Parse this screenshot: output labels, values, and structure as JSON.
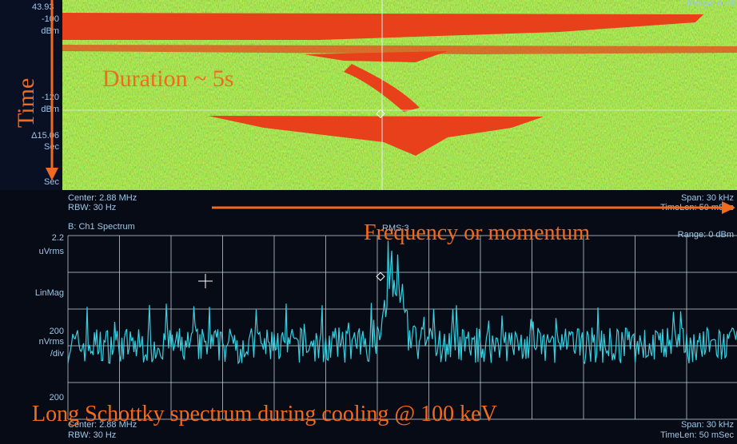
{
  "waterfall": {
    "header": "43.93",
    "range": "Range: 0 dB",
    "labels": [
      "-100",
      "dBm",
      "-120",
      "dBm",
      "Δ15.06",
      "Sec",
      "Sec"
    ],
    "footer": {
      "center": "Center: 2.88 MHz",
      "rbw": "RBW: 30 Hz",
      "span": "Span: 30 kHz",
      "timelen": "TimeLen: 50 mSec"
    }
  },
  "spectrum": {
    "title": "B: Ch1 Spectrum",
    "marker": "RMS:3",
    "range": "Range: 0 dBm",
    "labels": [
      "2.2",
      "uVrms",
      "LinMag",
      "200",
      "nVrms",
      "/div",
      "200"
    ],
    "footer": {
      "center": "Center: 2.88 MHz",
      "rbw": "RBW: 30 Hz",
      "span": "Span: 30 kHz",
      "timelen": "TimeLen: 50 mSec"
    }
  },
  "annotations": {
    "time": "Time",
    "duration": "Duration ~ 5s",
    "frequency": "Frequency or momentum",
    "caption": "Long Schottky spectrum during cooling @ 100 keV"
  }
}
